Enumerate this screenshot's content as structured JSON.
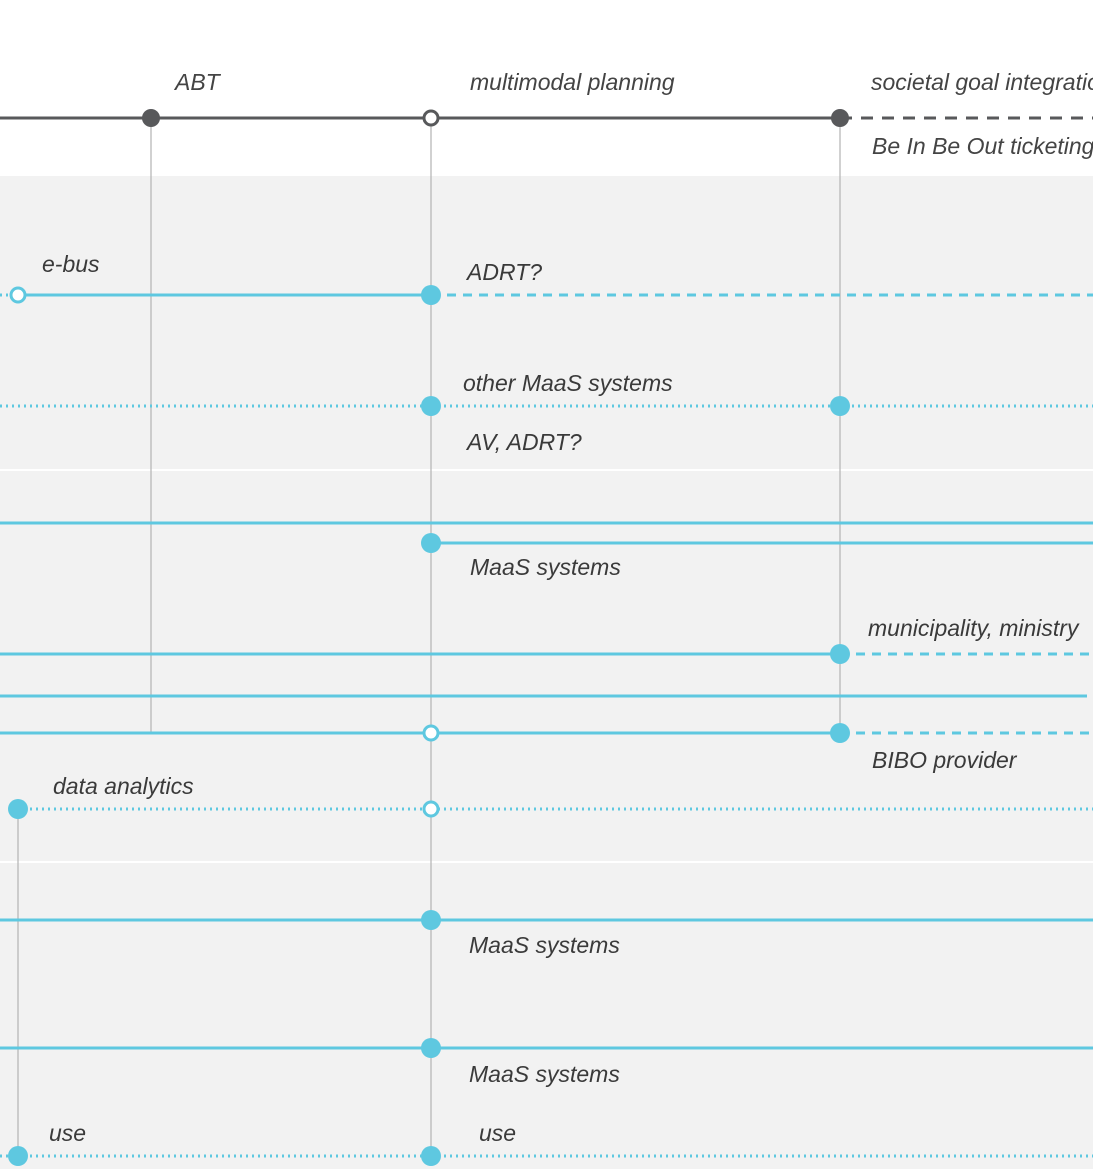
{
  "colors": {
    "timeline": "#58595b",
    "line": "#5ec8e0",
    "panel": "#f2f2f2",
    "connector": "#b8b8b8",
    "text": "#3a3a3a"
  },
  "timeline": {
    "labels": {
      "abt": "ABT",
      "multimodal": "multimodal planning",
      "societal": "societal goal integration",
      "bibo_ticketing": "Be In Be Out ticketing"
    }
  },
  "annotations": {
    "ebus": "e-bus",
    "adrt": "ADRT?",
    "other_maas": "other MaaS systems",
    "av_adrt": "AV, ADRT?",
    "maas_1": "MaaS systems",
    "municipality": "municipality, ministry",
    "bibo_provider": "BIBO provider",
    "data_analytics": "data analytics",
    "maas_2": "MaaS systems",
    "maas_3": "MaaS systems",
    "use_left": "use",
    "use_right": "use"
  },
  "legend_icons": [
    "filled-milestone-icon",
    "hollow-milestone-icon"
  ]
}
